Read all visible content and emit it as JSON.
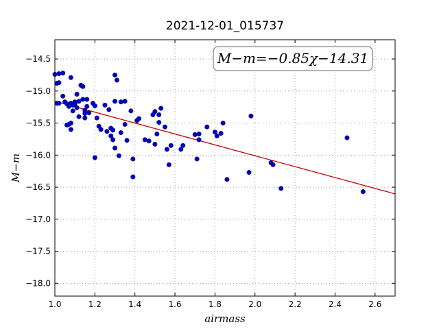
{
  "chart_data": {
    "type": "scatter",
    "title": "2021-12-01_015737",
    "xlabel": "airmass",
    "ylabel": "M−m",
    "xlim": [
      1.0,
      2.7
    ],
    "ylim": [
      -18.2,
      -14.2
    ],
    "y_inverted": true,
    "grid": true,
    "x_ticks": [
      "1.0",
      "1.2",
      "1.4",
      "1.6",
      "1.8",
      "2.0",
      "2.2",
      "2.4",
      "2.6"
    ],
    "y_ticks": [
      "−14.5",
      "−15.0",
      "−15.5",
      "−16.0",
      "−16.5",
      "−17.0",
      "−17.5",
      "−18.0"
    ],
    "annotation": "M−m=−0.85χ−14.31",
    "fit_line": {
      "slope": -0.85,
      "intercept": -14.31,
      "color": "#cc0000"
    },
    "series": [
      {
        "color": "#0000cc",
        "points": [
          [
            1.0,
            -14.74
          ],
          [
            1.01,
            -14.88
          ],
          [
            1.02,
            -14.87
          ],
          [
            1.02,
            -14.73
          ],
          [
            1.04,
            -14.72
          ],
          [
            1.01,
            -15.19
          ],
          [
            1.02,
            -15.19
          ],
          [
            1.04,
            -15.08
          ],
          [
            1.05,
            -15.17
          ],
          [
            1.06,
            -15.2
          ],
          [
            1.06,
            -15.53
          ],
          [
            1.07,
            -15.52
          ],
          [
            1.07,
            -15.24
          ],
          [
            1.08,
            -15.6
          ],
          [
            1.08,
            -15.5
          ],
          [
            1.08,
            -14.79
          ],
          [
            1.08,
            -15.19
          ],
          [
            1.09,
            -15.31
          ],
          [
            1.09,
            -15.22
          ],
          [
            1.1,
            -15.2
          ],
          [
            1.1,
            -15.17
          ],
          [
            1.11,
            -15.26
          ],
          [
            1.11,
            -15.05
          ],
          [
            1.12,
            -15.4
          ],
          [
            1.12,
            -15.16
          ],
          [
            1.13,
            -14.91
          ],
          [
            1.14,
            -14.93
          ],
          [
            1.14,
            -15.13
          ],
          [
            1.15,
            -15.3
          ],
          [
            1.15,
            -15.35
          ],
          [
            1.15,
            -15.42
          ],
          [
            1.16,
            -15.24
          ],
          [
            1.16,
            -15.13
          ],
          [
            1.17,
            -15.34
          ],
          [
            1.19,
            -15.19
          ],
          [
            1.2,
            -15.23
          ],
          [
            1.2,
            -16.04
          ],
          [
            1.21,
            -15.42
          ],
          [
            1.22,
            -15.55
          ],
          [
            1.23,
            -15.6
          ],
          [
            1.25,
            -15.22
          ],
          [
            1.26,
            -15.63
          ],
          [
            1.27,
            -15.29
          ],
          [
            1.28,
            -15.58
          ],
          [
            1.28,
            -15.7
          ],
          [
            1.29,
            -15.76
          ],
          [
            1.29,
            -15.61
          ],
          [
            1.3,
            -15.89
          ],
          [
            1.3,
            -15.16
          ],
          [
            1.3,
            -14.75
          ],
          [
            1.31,
            -14.83
          ],
          [
            1.32,
            -16.01
          ],
          [
            1.33,
            -15.17
          ],
          [
            1.33,
            -15.65
          ],
          [
            1.35,
            -15.16
          ],
          [
            1.35,
            -15.52
          ],
          [
            1.36,
            -15.77
          ],
          [
            1.38,
            -15.31
          ],
          [
            1.39,
            -16.34
          ],
          [
            1.39,
            -16.06
          ],
          [
            1.41,
            -15.46
          ],
          [
            1.42,
            -15.43
          ],
          [
            1.45,
            -15.76
          ],
          [
            1.47,
            -15.78
          ],
          [
            1.49,
            -15.37
          ],
          [
            1.5,
            -15.83
          ],
          [
            1.5,
            -15.32
          ],
          [
            1.51,
            -15.67
          ],
          [
            1.52,
            -15.37
          ],
          [
            1.52,
            -15.49
          ],
          [
            1.53,
            -15.27
          ],
          [
            1.55,
            -15.56
          ],
          [
            1.56,
            -15.91
          ],
          [
            1.57,
            -16.15
          ],
          [
            1.58,
            -15.85
          ],
          [
            1.63,
            -15.91
          ],
          [
            1.64,
            -15.85
          ],
          [
            1.7,
            -15.68
          ],
          [
            1.71,
            -16.06
          ],
          [
            1.72,
            -15.67
          ],
          [
            1.72,
            -15.76
          ],
          [
            1.76,
            -15.56
          ],
          [
            1.8,
            -15.64
          ],
          [
            1.81,
            -15.7
          ],
          [
            1.83,
            -15.66
          ],
          [
            1.84,
            -15.5
          ],
          [
            1.86,
            -16.38
          ],
          [
            1.97,
            -16.27
          ],
          [
            1.98,
            -15.39
          ],
          [
            2.08,
            -16.12
          ],
          [
            2.09,
            -16.15
          ],
          [
            2.13,
            -16.52
          ],
          [
            2.46,
            -15.73
          ],
          [
            2.54,
            -16.57
          ]
        ]
      }
    ]
  }
}
